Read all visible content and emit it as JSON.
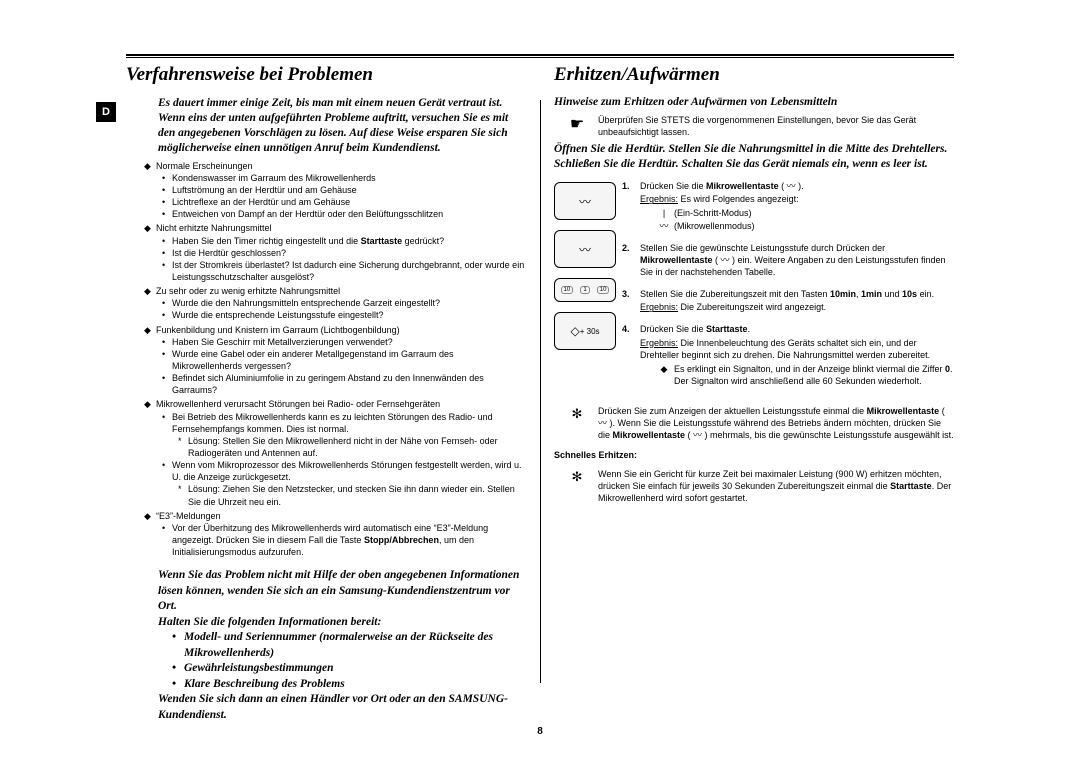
{
  "page_number": "8",
  "badge": "D",
  "left": {
    "heading": "Verfahrensweise bei Problemen",
    "intro": "Es dauert immer einige Zeit, bis man mit einem neuen Gerät vertraut ist. Wenn eins der unten aufgeführten Probleme auftritt, versuchen Sie es mit den angegebenen Vorschlägen zu lösen. Auf diese Weise ersparen Sie sich möglicherweise einen unnötigen Anruf beim Kundendienst.",
    "g1_t": "Normale Erscheinungen",
    "g1_a": "Kondenswasser im Garraum des Mikrowellenherds",
    "g1_b": "Luftströmung an der Herdtür und am Gehäuse",
    "g1_c": "Lichtreflexe an der Herdtür und am Gehäuse",
    "g1_d": "Entweichen von Dampf an der Herdtür oder den Belüftungsschlitzen",
    "g2_t": "Nicht erhitzte Nahrungsmittel",
    "g2_a_pre": "Haben Sie den Timer richtig eingestellt und die ",
    "g2_a_b": "Starttaste",
    "g2_a_post": " gedrückt?",
    "g2_b": "Ist die Herdtür geschlossen?",
    "g2_c": "Ist der Stromkreis überlastet? Ist dadurch eine Sicherung durchgebrannt, oder wurde ein Leistungsschutzschalter ausgelöst?",
    "g3_t": "Zu sehr oder zu wenig erhitzte Nahrungsmittel",
    "g3_a": "Wurde die den Nahrungsmitteln entsprechende Garzeit eingestellt?",
    "g3_b": "Wurde die entsprechende Leistungsstufe eingestellt?",
    "g4_t": "Funkenbildung und Knistern im Garraum (Lichtbogenbildung)",
    "g4_a": "Haben Sie Geschirr mit Metallverzierungen verwendet?",
    "g4_b": "Wurde eine Gabel oder ein anderer Metallgegenstand im Garraum des Mikrowellenherds vergessen?",
    "g4_c": "Befindet sich Aluminiumfolie in zu geringem Abstand zu den Innenwänden des Garraums?",
    "g5_t": "Mikrowellenherd verursacht Störungen bei Radio- oder Fernsehgeräten",
    "g5_a": "Bei Betrieb des Mikrowellenherds kann es zu leichten Störungen des Radio- und Fernsehempfangs kommen. Dies ist normal.",
    "g5_a1": "Lösung: Stellen Sie den Mikrowellenherd nicht in der Nähe von Fernseh- oder Radiogeräten und Antennen auf.",
    "g5_b": "Wenn vom Mikroprozessor des Mikrowellenherds Störungen festgestellt werden, wird u. U. die Anzeige zurückgesetzt.",
    "g5_b1": "Lösung: Ziehen Sie den Netzstecker, und stecken Sie ihn dann wieder ein. Stellen Sie die Uhrzeit neu ein.",
    "g6_t": "“E3”-Meldungen",
    "g6_a_pre": "Vor der Überhitzung des Mikrowellenherds wird automatisch eine “E3”-Meldung angezeigt. Drücken Sie in diesem Fall die Taste ",
    "g6_a_b1": "Stopp/Abbrechen",
    "g6_a_post": ", um den Initialisierungsmodus aufzurufen.",
    "closing_p1": "Wenn Sie das Problem nicht mit Hilfe der oben angegebenen Informationen lösen können, wenden Sie sich an ein Samsung-Kundendienstzentrum vor Ort.",
    "closing_p2": "Halten Sie die folgenden Informationen bereit:",
    "closing_b1": "Modell- und Seriennummer (normalerweise an der Rückseite des Mikrowellenherds)",
    "closing_b2": "Gewährleistungsbestimmungen",
    "closing_b3": "Klare Beschreibung des Problems",
    "closing_p3": "Wenden Sie sich dann an einen Händler vor Ort oder an den SAMSUNG-Kundendienst."
  },
  "right": {
    "heading": "Erhitzen/Aufwärmen",
    "hint_title": "Hinweise zum Erhitzen oder Aufwärmen von Lebensmitteln",
    "note1": "Überprüfen Sie STETS die vorgenommenen Einstellungen, bevor Sie das Gerät unbeaufsichtigt lassen.",
    "warn": "Öffnen Sie die Herdtür. Stellen Sie die Nahrungsmittel in die Mitte des Drehtellers. Schließen Sie die Herdtür. Schalten Sie das Gerät niemals ein, wenn es leer ist.",
    "btn4_label": "+ 30s",
    "s1_pre": "Drücken Sie die ",
    "s1_b": "Mikrowellentaste",
    "s1_post": " ( 〰 ).",
    "s1_res_label": "Ergebnis:",
    "s1_res": " Es wird Folgendes angezeigt:",
    "s1_line1": "(Ein-Schritt-Modus)",
    "s1_line2": "(Mikrowellenmodus)",
    "s2_pre": "Stellen Sie die gewünschte Leistungsstufe durch Drücken der ",
    "s2_b": "Mikrowellentaste",
    "s2_post": " ( 〰 ) ein. Weitere Angaben zu den Leistungsstufen finden Sie in der nachstehenden Tabelle.",
    "s3_pre": "Stellen Sie die Zubereitungszeit mit den Tasten ",
    "s3_b1": "10min",
    "s3_mid": ", ",
    "s3_b2": "1min",
    "s3_mid2": " und ",
    "s3_b3": "10s",
    "s3_post": " ein.",
    "s3_res": " Die Zubereitungszeit wird angezeigt.",
    "s4_pre": "Drücken Sie die ",
    "s4_b": "Starttaste",
    "s4_post": ".",
    "s4_res": " Die Innenbeleuchtung des Geräts schaltet sich ein, und der Drehteller beginnt sich zu drehen. Die Nahrungsmittel werden zubereitet.",
    "s4_sub_pre": "Es erklingt ein Signalton, und in der Anzeige blinkt viermal die Ziffer ",
    "s4_sub_b": "0",
    "s4_sub_post": ". Der Signalton wird anschließend alle 60 Sekunden wiederholt.",
    "tip_pre": "Drücken Sie zum Anzeigen der aktuellen Leistungsstufe einmal die ",
    "tip_b1": "Mikrowellentaste",
    "tip_mid1": " ( 〰 ). Wenn Sie die Leistungsstufe während des Betriebs ändern möchten, drücken Sie die ",
    "tip_b2": "Mikrowellentaste",
    "tip_post": " ( 〰 ) mehrmals, bis die gewünschte Leistungsstufe ausgewählt ist.",
    "sch_title": "Schnelles Erhitzen:",
    "sch_pre": "Wenn Sie ein Gericht für kurze Zeit bei maximaler Leistung (900 W) erhitzen möchten, drücken Sie einfach für jeweils 30 Sekunden Zubereitungszeit einmal die ",
    "sch_b": "Starttaste",
    "sch_post": ". Der Mikrowellenherd wird sofort gestartet."
  }
}
